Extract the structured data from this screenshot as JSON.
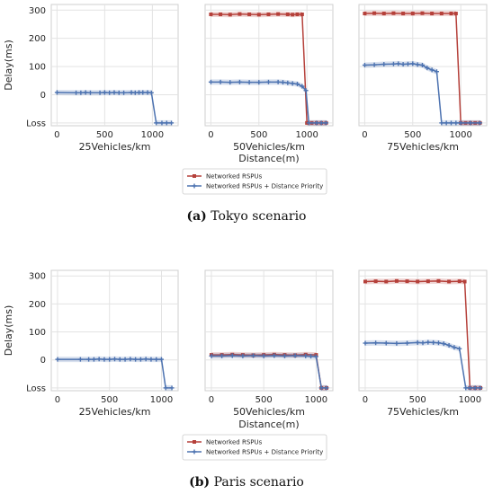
{
  "chart_data": [
    {
      "group": "a",
      "type": "line",
      "title": "",
      "xlabel": "25Vehicles/km",
      "ylabel": "Delay(ms)",
      "xlim": [
        -60,
        1270
      ],
      "ylim": [
        "Loss",
        320
      ],
      "xticks": [
        "0",
        "500",
        "1000"
      ],
      "yticks": [
        "Loss",
        "0",
        "100",
        "200",
        "300"
      ],
      "series": [
        {
          "name": "Networked RSPUs + Distance Priority",
          "color": "#4c72b0",
          "x": [
            0,
            200,
            250,
            300,
            350,
            450,
            500,
            550,
            600,
            650,
            700,
            780,
            820,
            860,
            900,
            950,
            990,
            1040,
            1100,
            1150,
            1200
          ],
          "y": [
            8,
            7,
            7,
            8,
            7,
            7,
            8,
            7,
            8,
            7,
            7,
            8,
            7,
            8,
            8,
            8,
            7,
            "Loss",
            "Loss",
            "Loss",
            "Loss"
          ]
        }
      ]
    },
    {
      "group": "a",
      "type": "line",
      "title": "",
      "xlabel": "50Vehicles/km",
      "ylabel": "",
      "xlim": [
        -60,
        1270
      ],
      "ylim": [
        "Loss",
        320
      ],
      "xticks": [
        "0",
        "500",
        "1000"
      ],
      "yticks": [
        "Loss",
        "0",
        "100",
        "200",
        "300"
      ],
      "series": [
        {
          "name": "Networked RSPUs",
          "color": "#b5403a",
          "x": [
            0,
            100,
            200,
            300,
            400,
            500,
            600,
            700,
            800,
            850,
            900,
            950,
            1000,
            1050,
            1100,
            1150,
            1200
          ],
          "y": [
            285,
            285,
            284,
            286,
            285,
            284,
            285,
            286,
            285,
            284,
            285,
            285,
            "Loss",
            "Loss",
            "Loss",
            "Loss",
            "Loss"
          ]
        },
        {
          "name": "Networked RSPUs + Distance Priority",
          "color": "#4c72b0",
          "x": [
            0,
            100,
            200,
            300,
            400,
            500,
            600,
            700,
            750,
            800,
            850,
            900,
            950,
            990,
            1020,
            1100,
            1150,
            1200
          ],
          "y": [
            45,
            45,
            44,
            45,
            44,
            44,
            45,
            45,
            44,
            42,
            40,
            38,
            30,
            15,
            "Loss",
            "Loss",
            "Loss",
            "Loss"
          ]
        }
      ]
    },
    {
      "group": "a",
      "type": "line",
      "title": "",
      "xlabel": "75Vehicles/km",
      "ylabel": "",
      "xlim": [
        -60,
        1270
      ],
      "ylim": [
        "Loss",
        320
      ],
      "xticks": [
        "0",
        "500",
        "1000"
      ],
      "yticks": [
        "Loss",
        "0",
        "100",
        "200",
        "300"
      ],
      "series": [
        {
          "name": "Networked RSPUs",
          "color": "#b5403a",
          "x": [
            0,
            100,
            200,
            300,
            400,
            500,
            600,
            700,
            800,
            900,
            950,
            1000,
            1050,
            1100,
            1150,
            1200
          ],
          "y": [
            288,
            289,
            288,
            289,
            288,
            288,
            289,
            288,
            288,
            288,
            288,
            "Loss",
            "Loss",
            "Loss",
            "Loss",
            "Loss"
          ]
        },
        {
          "name": "Networked RSPUs + Distance Priority",
          "color": "#4c72b0",
          "x": [
            0,
            100,
            200,
            300,
            350,
            400,
            450,
            500,
            550,
            600,
            650,
            700,
            750,
            800,
            850,
            900,
            950,
            1000,
            1100,
            1200
          ],
          "y": [
            105,
            106,
            108,
            109,
            110,
            108,
            109,
            110,
            107,
            105,
            95,
            88,
            82,
            "Loss",
            "Loss",
            "Loss",
            "Loss",
            "Loss",
            "Loss",
            "Loss"
          ]
        }
      ]
    },
    {
      "group": "b",
      "type": "line",
      "title": "",
      "xlabel": "25Vehicles/km",
      "ylabel": "Delay(ms)",
      "xlim": [
        -60,
        1160
      ],
      "ylim": [
        "Loss",
        320
      ],
      "xticks": [
        "0",
        "500",
        "1000"
      ],
      "yticks": [
        "Loss",
        "0",
        "100",
        "200",
        "300"
      ],
      "series": [
        {
          "name": "Networked RSPUs + Distance Priority",
          "color": "#4c72b0",
          "x": [
            0,
            220,
            300,
            350,
            400,
            450,
            500,
            550,
            600,
            650,
            700,
            750,
            800,
            850,
            900,
            950,
            1000,
            1040,
            1100
          ],
          "y": [
            2,
            2,
            2,
            2,
            3,
            2,
            2,
            3,
            2,
            2,
            3,
            2,
            2,
            3,
            2,
            2,
            2,
            "Loss",
            "Loss"
          ]
        }
      ]
    },
    {
      "group": "b",
      "type": "line",
      "title": "",
      "xlabel": "50Vehicles/km",
      "ylabel": "",
      "xlim": [
        -60,
        1160
      ],
      "ylim": [
        "Loss",
        320
      ],
      "xticks": [
        "0",
        "500",
        "1000"
      ],
      "yticks": [
        "Loss",
        "0",
        "100",
        "200",
        "300"
      ],
      "series": [
        {
          "name": "Networked RSPUs",
          "color": "#b5403a",
          "x": [
            0,
            100,
            200,
            300,
            400,
            500,
            600,
            700,
            800,
            900,
            1000,
            1050,
            1100
          ],
          "y": [
            18,
            18,
            19,
            18,
            17,
            18,
            19,
            18,
            17,
            19,
            18,
            "Loss",
            "Loss"
          ]
        },
        {
          "name": "Networked RSPUs + Distance Priority",
          "color": "#4c72b0",
          "x": [
            0,
            100,
            200,
            300,
            400,
            500,
            600,
            700,
            800,
            900,
            950,
            1000,
            1050,
            1100
          ],
          "y": [
            14,
            14,
            15,
            14,
            15,
            14,
            15,
            14,
            15,
            14,
            13,
            12,
            "Loss",
            "Loss"
          ]
        }
      ]
    },
    {
      "group": "b",
      "type": "line",
      "title": "",
      "xlabel": "75Vehicles/km",
      "ylabel": "",
      "xlim": [
        -60,
        1160
      ],
      "ylim": [
        "Loss",
        320
      ],
      "xticks": [
        "0",
        "500",
        "1000"
      ],
      "yticks": [
        "Loss",
        "0",
        "100",
        "200",
        "300"
      ],
      "series": [
        {
          "name": "Networked RSPUs",
          "color": "#b5403a",
          "x": [
            0,
            100,
            200,
            300,
            400,
            500,
            600,
            700,
            800,
            900,
            950,
            1000,
            1050,
            1100
          ],
          "y": [
            280,
            281,
            280,
            282,
            281,
            280,
            281,
            282,
            280,
            281,
            280,
            "Loss",
            "Loss",
            "Loss"
          ]
        },
        {
          "name": "Networked RSPUs + Distance Priority",
          "color": "#4c72b0",
          "x": [
            0,
            100,
            200,
            300,
            400,
            500,
            550,
            600,
            650,
            700,
            750,
            800,
            850,
            900,
            960,
            1000,
            1050,
            1100
          ],
          "y": [
            60,
            61,
            60,
            59,
            60,
            62,
            61,
            63,
            62,
            61,
            58,
            52,
            45,
            40,
            "Loss",
            "Loss",
            "Loss",
            "Loss"
          ]
        }
      ]
    }
  ],
  "shared_xlabel": "Distance(m)",
  "legend": {
    "entries": [
      "Networked RSPUs",
      "Networked RSPUs + Distance Priority"
    ],
    "colors": [
      "#b5403a",
      "#4c72b0"
    ],
    "placement": "bottom-center"
  },
  "captions": {
    "a_letter": "(a)",
    "a_text": "Tokyo scenario",
    "b_letter": "(b)",
    "b_text": "Paris scenario"
  }
}
